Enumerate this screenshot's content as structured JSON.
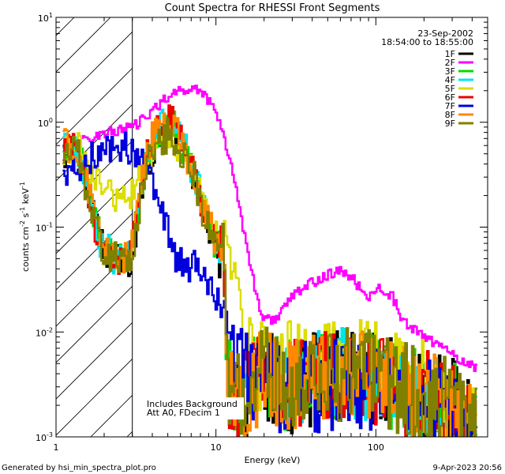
{
  "chart_data": {
    "type": "line",
    "title": "Count Spectra for RHESSI Front Segments",
    "xlabel": "Energy (keV)",
    "ylabel_main": "counts cm",
    "ylabel_exp1": "-2",
    "ylabel_mid": " s",
    "ylabel_exp2": "-1",
    "ylabel_tail": " keV",
    "ylabel_exp3": "-1",
    "xscale": "log",
    "yscale": "log",
    "xlim": [
      1,
      500
    ],
    "ylim": [
      0.001,
      10
    ],
    "x_ticks": [
      {
        "value": 1,
        "label": "1"
      },
      {
        "value": 10,
        "label": "10"
      },
      {
        "value": 100,
        "label": "100"
      }
    ],
    "y_ticks": [
      {
        "value": 0.001,
        "base": "10",
        "exp": "-3"
      },
      {
        "value": 0.01,
        "base": "10",
        "exp": "-2"
      },
      {
        "value": 0.1,
        "base": "10",
        "exp": "-1"
      },
      {
        "value": 1,
        "base": "10",
        "exp": "0"
      },
      {
        "value": 10,
        "base": "10",
        "exp": "1"
      }
    ],
    "attenuated_region": [
      1,
      3
    ],
    "date": "23-Sep-2002",
    "time_range": "18:54:00 to 18:55:00",
    "annotations": [
      "Includes Background",
      "Att A0, FDecim 1"
    ],
    "legend_position": "top-right",
    "series": [
      {
        "name": "1F",
        "color": "#000000",
        "knots": [
          [
            1.1,
            0.45
          ],
          [
            1.35,
            0.5
          ],
          [
            1.6,
            0.2
          ],
          [
            1.9,
            0.07
          ],
          [
            2.3,
            0.05
          ],
          [
            2.9,
            0.04
          ],
          [
            3.4,
            0.2
          ],
          [
            3.8,
            0.5
          ],
          [
            4.5,
            0.8
          ],
          [
            5,
            1.0
          ],
          [
            5.5,
            0.8
          ],
          [
            6.5,
            0.4
          ],
          [
            7.5,
            0.25
          ],
          [
            8.5,
            0.12
          ],
          [
            9.5,
            0.08
          ],
          [
            10.5,
            0.045
          ],
          [
            11,
            0.08
          ],
          [
            11.6,
            0.004
          ],
          [
            13,
            0.002
          ],
          [
            16,
            0.003
          ],
          [
            20,
            0.004
          ],
          [
            30,
            0.003
          ],
          [
            50,
            0.004
          ],
          [
            80,
            0.004
          ],
          [
            130,
            0.003
          ],
          [
            200,
            0.0025
          ],
          [
            300,
            0.002
          ],
          [
            430,
            0.001
          ]
        ],
        "amp": 0.17,
        "noise_from": 11.6
      },
      {
        "name": "2F",
        "color": "#ff00ff",
        "knots": [
          [
            1.1,
            0.62
          ],
          [
            1.4,
            0.65
          ],
          [
            1.8,
            0.75
          ],
          [
            2.3,
            0.82
          ],
          [
            3,
            0.9
          ],
          [
            3.6,
            1.1
          ],
          [
            4.2,
            1.4
          ],
          [
            5,
            1.8
          ],
          [
            6,
            2.0
          ],
          [
            7,
            2.1
          ],
          [
            8,
            2.0
          ],
          [
            9,
            1.6
          ],
          [
            10,
            1.2
          ],
          [
            11,
            0.8
          ],
          [
            12.5,
            0.35
          ],
          [
            14,
            0.15
          ],
          [
            15,
            0.08
          ],
          [
            16.5,
            0.04
          ],
          [
            18,
            0.02
          ],
          [
            20,
            0.013
          ],
          [
            23,
            0.013
          ],
          [
            26,
            0.017
          ],
          [
            30,
            0.022
          ],
          [
            40,
            0.03
          ],
          [
            50,
            0.035
          ],
          [
            60,
            0.038
          ],
          [
            70,
            0.033
          ],
          [
            80,
            0.025
          ],
          [
            90,
            0.022
          ],
          [
            100,
            0.025
          ],
          [
            110,
            0.026
          ],
          [
            125,
            0.022
          ],
          [
            150,
            0.012
          ],
          [
            200,
            0.009
          ],
          [
            300,
            0.006
          ],
          [
            430,
            0.0045
          ]
        ],
        "amp": 0.05,
        "noise_from": 100000
      },
      {
        "name": "3F",
        "color": "#00dd00",
        "knots": [
          [
            1.1,
            0.55
          ],
          [
            1.35,
            0.6
          ],
          [
            1.6,
            0.18
          ],
          [
            1.9,
            0.07
          ],
          [
            2.3,
            0.05
          ],
          [
            2.9,
            0.055
          ],
          [
            3.4,
            0.25
          ],
          [
            3.8,
            0.6
          ],
          [
            4.5,
            0.85
          ],
          [
            5,
            1.0
          ],
          [
            5.5,
            0.85
          ],
          [
            6.5,
            0.45
          ],
          [
            7.5,
            0.27
          ],
          [
            8.5,
            0.12
          ],
          [
            9.5,
            0.08
          ],
          [
            10.5,
            0.06
          ],
          [
            11,
            0.09
          ],
          [
            11.6,
            0.004
          ],
          [
            13,
            0.002
          ],
          [
            16,
            0.003
          ],
          [
            20,
            0.004
          ],
          [
            30,
            0.003
          ],
          [
            50,
            0.004
          ],
          [
            80,
            0.004
          ],
          [
            130,
            0.003
          ],
          [
            200,
            0.0025
          ],
          [
            300,
            0.002
          ],
          [
            430,
            0.001
          ]
        ],
        "amp": 0.17,
        "noise_from": 11.6
      },
      {
        "name": "4F",
        "color": "#00e5ee",
        "knots": [
          [
            1.1,
            0.6
          ],
          [
            1.35,
            0.6
          ],
          [
            1.6,
            0.2
          ],
          [
            1.9,
            0.07
          ],
          [
            2.3,
            0.05
          ],
          [
            2.9,
            0.06
          ],
          [
            3.4,
            0.28
          ],
          [
            3.8,
            0.65
          ],
          [
            4.5,
            0.9
          ],
          [
            5,
            1.1
          ],
          [
            5.5,
            0.9
          ],
          [
            6.5,
            0.5
          ],
          [
            7.5,
            0.28
          ],
          [
            8.5,
            0.13
          ],
          [
            9.5,
            0.09
          ],
          [
            10.5,
            0.06
          ],
          [
            11,
            0.09
          ],
          [
            11.6,
            0.004
          ],
          [
            13,
            0.002
          ],
          [
            16,
            0.003
          ],
          [
            20,
            0.004
          ],
          [
            30,
            0.003
          ],
          [
            50,
            0.004
          ],
          [
            80,
            0.004
          ],
          [
            130,
            0.003
          ],
          [
            200,
            0.0025
          ],
          [
            300,
            0.002
          ],
          [
            430,
            0.001
          ]
        ],
        "amp": 0.17,
        "noise_from": 11.6
      },
      {
        "name": "5F",
        "color": "#dddd00",
        "knots": [
          [
            1.1,
            0.55
          ],
          [
            1.35,
            0.6
          ],
          [
            1.6,
            0.35
          ],
          [
            1.9,
            0.25
          ],
          [
            2.3,
            0.2
          ],
          [
            2.9,
            0.2
          ],
          [
            3.4,
            0.35
          ],
          [
            3.8,
            0.5
          ],
          [
            4.5,
            0.6
          ],
          [
            5,
            0.62
          ],
          [
            5.5,
            0.6
          ],
          [
            6.5,
            0.45
          ],
          [
            7.5,
            0.3
          ],
          [
            8.5,
            0.15
          ],
          [
            9.5,
            0.1
          ],
          [
            10.5,
            0.08
          ],
          [
            11,
            0.1
          ],
          [
            11.6,
            0.06
          ],
          [
            12.5,
            0.04
          ],
          [
            13.5,
            0.03
          ],
          [
            14.5,
            0.012
          ],
          [
            16,
            0.005
          ],
          [
            20,
            0.005
          ],
          [
            30,
            0.005
          ],
          [
            50,
            0.005
          ],
          [
            80,
            0.005
          ],
          [
            130,
            0.004
          ],
          [
            200,
            0.003
          ],
          [
            300,
            0.002
          ],
          [
            430,
            0.001
          ]
        ],
        "amp": 0.15,
        "noise_from": 14.5
      },
      {
        "name": "6F",
        "color": "#ee0000",
        "knots": [
          [
            1.1,
            0.5
          ],
          [
            1.35,
            0.55
          ],
          [
            1.6,
            0.18
          ],
          [
            1.9,
            0.06
          ],
          [
            2.3,
            0.05
          ],
          [
            2.9,
            0.05
          ],
          [
            3.4,
            0.25
          ],
          [
            3.8,
            0.6
          ],
          [
            4.5,
            0.95
          ],
          [
            5,
            1.15
          ],
          [
            5.5,
            0.95
          ],
          [
            6.5,
            0.5
          ],
          [
            7.5,
            0.28
          ],
          [
            8.5,
            0.13
          ],
          [
            9.5,
            0.09
          ],
          [
            10.5,
            0.06
          ],
          [
            11,
            0.09
          ],
          [
            11.6,
            0.004
          ],
          [
            13,
            0.002
          ],
          [
            16,
            0.003
          ],
          [
            20,
            0.004
          ],
          [
            30,
            0.003
          ],
          [
            50,
            0.004
          ],
          [
            80,
            0.004
          ],
          [
            130,
            0.003
          ],
          [
            200,
            0.0025
          ],
          [
            300,
            0.002
          ],
          [
            430,
            0.001
          ]
        ],
        "amp": 0.17,
        "noise_from": 11.6
      },
      {
        "name": "7F",
        "color": "#0000dd",
        "knots": [
          [
            1.1,
            0.32
          ],
          [
            1.35,
            0.35
          ],
          [
            1.6,
            0.45
          ],
          [
            1.9,
            0.55
          ],
          [
            2.3,
            0.6
          ],
          [
            2.9,
            0.55
          ],
          [
            3.4,
            0.4
          ],
          [
            3.8,
            0.28
          ],
          [
            4.2,
            0.22
          ],
          [
            4.6,
            0.15
          ],
          [
            5,
            0.09
          ],
          [
            5.5,
            0.05
          ],
          [
            6.5,
            0.04
          ],
          [
            7.5,
            0.05
          ],
          [
            8.5,
            0.035
          ],
          [
            9.5,
            0.025
          ],
          [
            10.5,
            0.02
          ],
          [
            11.5,
            0.015
          ],
          [
            12.5,
            0.01
          ],
          [
            13.5,
            0.006
          ],
          [
            15,
            0.004
          ],
          [
            20,
            0.003
          ],
          [
            30,
            0.003
          ],
          [
            50,
            0.003
          ],
          [
            80,
            0.003
          ],
          [
            130,
            0.0025
          ],
          [
            200,
            0.002
          ],
          [
            300,
            0.0015
          ],
          [
            430,
            0.001
          ]
        ],
        "amp": 0.15,
        "noise_from": 12.5
      },
      {
        "name": "8F",
        "color": "#ff8800",
        "knots": [
          [
            1.1,
            0.6
          ],
          [
            1.35,
            0.62
          ],
          [
            1.6,
            0.2
          ],
          [
            1.9,
            0.07
          ],
          [
            2.3,
            0.05
          ],
          [
            2.9,
            0.055
          ],
          [
            3.4,
            0.26
          ],
          [
            3.8,
            0.62
          ],
          [
            4.5,
            0.95
          ],
          [
            5,
            1.2
          ],
          [
            5.5,
            0.95
          ],
          [
            6.5,
            0.5
          ],
          [
            7.5,
            0.27
          ],
          [
            8.5,
            0.13
          ],
          [
            9.5,
            0.09
          ],
          [
            10.5,
            0.06
          ],
          [
            11,
            0.09
          ],
          [
            11.6,
            0.004
          ],
          [
            13,
            0.002
          ],
          [
            16,
            0.003
          ],
          [
            20,
            0.004
          ],
          [
            30,
            0.003
          ],
          [
            50,
            0.004
          ],
          [
            80,
            0.004
          ],
          [
            130,
            0.003
          ],
          [
            200,
            0.0025
          ],
          [
            300,
            0.002
          ],
          [
            430,
            0.001
          ]
        ],
        "amp": 0.17,
        "noise_from": 11.6
      },
      {
        "name": "9F",
        "color": "#808000",
        "knots": [
          [
            1.1,
            0.52
          ],
          [
            1.35,
            0.55
          ],
          [
            1.6,
            0.18
          ],
          [
            1.9,
            0.065
          ],
          [
            2.3,
            0.05
          ],
          [
            2.9,
            0.05
          ],
          [
            3.4,
            0.22
          ],
          [
            3.8,
            0.5
          ],
          [
            4.5,
            0.7
          ],
          [
            5,
            0.75
          ],
          [
            5.5,
            0.7
          ],
          [
            6.5,
            0.42
          ],
          [
            7.5,
            0.26
          ],
          [
            8.5,
            0.12
          ],
          [
            9.5,
            0.08
          ],
          [
            10.5,
            0.05
          ],
          [
            11,
            0.08
          ],
          [
            11.6,
            0.004
          ],
          [
            13,
            0.002
          ],
          [
            16,
            0.003
          ],
          [
            20,
            0.004
          ],
          [
            30,
            0.003
          ],
          [
            50,
            0.004
          ],
          [
            80,
            0.004
          ],
          [
            130,
            0.003
          ],
          [
            200,
            0.0025
          ],
          [
            300,
            0.002
          ],
          [
            430,
            0.001
          ]
        ],
        "amp": 0.17,
        "noise_from": 11.6
      }
    ]
  },
  "footer": {
    "generated": "Generated by hsi_min_spectra_plot.pro",
    "date": "9-Apr-2023 20:56"
  }
}
